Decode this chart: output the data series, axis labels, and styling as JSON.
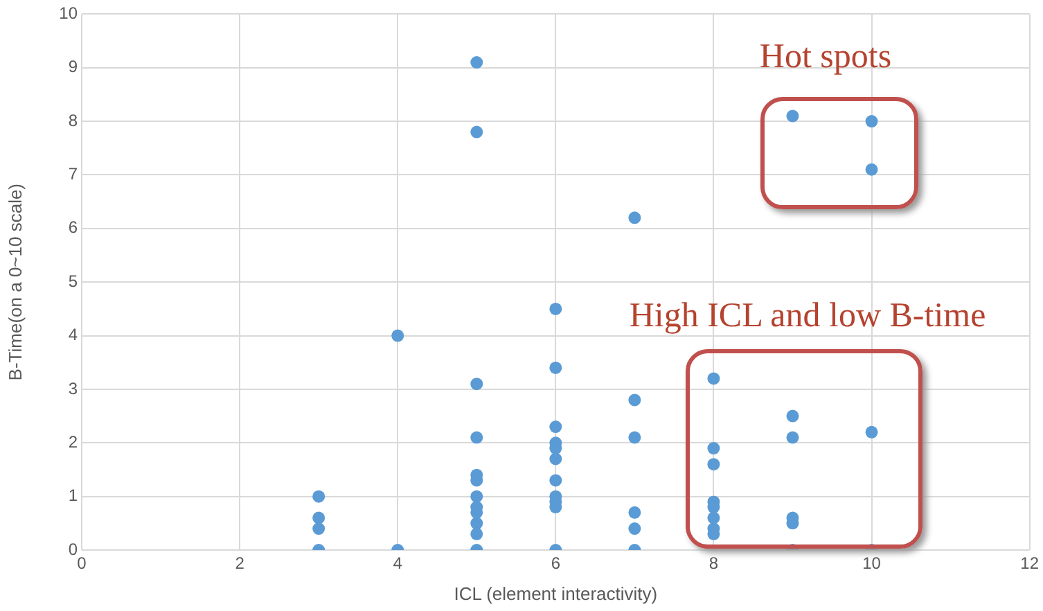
{
  "chart_data": {
    "type": "scatter",
    "xlabel": "ICL (element interactivity)",
    "ylabel": "B-Time(on a 0~10 scale)",
    "x": [
      3,
      3,
      3,
      3,
      4,
      4,
      5,
      5,
      5,
      5,
      5,
      5,
      5,
      5,
      5,
      5,
      5,
      5,
      6,
      6,
      6,
      6,
      6,
      6,
      6,
      6,
      6,
      6,
      6,
      7,
      7,
      7,
      7,
      7,
      7,
      8,
      8,
      8,
      8,
      8,
      8,
      8,
      8,
      9,
      9,
      9,
      9,
      9,
      9,
      10,
      10,
      10,
      10
    ],
    "series": [
      {
        "color": "#5b9bd5",
        "values": [
          1.0,
          0.6,
          0.4,
          0,
          4.0,
          0,
          9.1,
          7.8,
          3.1,
          2.1,
          1.4,
          1.3,
          1.0,
          0.8,
          0.7,
          0.5,
          0.3,
          0,
          4.5,
          3.4,
          2.3,
          2.0,
          1.9,
          1.7,
          1.3,
          1.0,
          0.9,
          0.8,
          0,
          6.2,
          2.8,
          2.1,
          0.7,
          0.4,
          0,
          3.2,
          1.9,
          1.6,
          0.9,
          0.8,
          0.6,
          0.4,
          0.3,
          8.1,
          2.5,
          2.1,
          0.6,
          0.5,
          0,
          8.0,
          7.1,
          2.2,
          0
        ]
      }
    ],
    "xlim": [
      0,
      12
    ],
    "xticks": [
      0,
      2,
      4,
      6,
      8,
      10,
      12
    ],
    "ylim": [
      0,
      10
    ],
    "yticks": [
      0,
      1,
      2,
      3,
      4,
      5,
      6,
      7,
      8,
      9,
      10
    ],
    "grid": true,
    "legend": false,
    "marker": "circle",
    "annotations": [
      "Hot spots",
      "High ICL and low B-time"
    ]
  }
}
